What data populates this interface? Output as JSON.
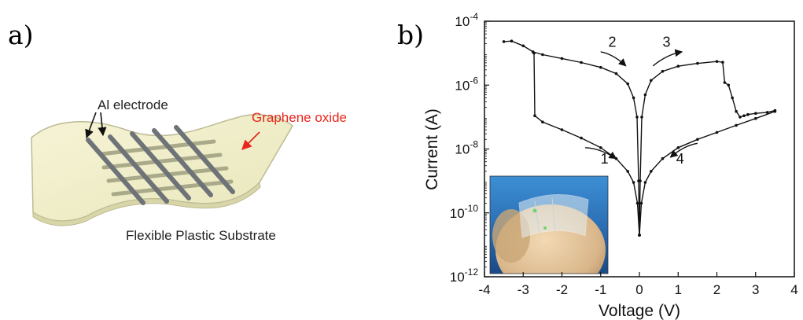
{
  "panel_a": {
    "letter": "a)",
    "electrode_label": "Al electrode",
    "oxide_label": "Graphene oxide",
    "substrate_label": "Flexible Plastic Substrate",
    "colors": {
      "substrate": "#f1efc8",
      "electrode": "#6e7378",
      "oxide_stripe": "#a9aa8a",
      "oxide_label": "#e8261c"
    }
  },
  "panel_b": {
    "letter": "b)",
    "inset": {
      "icon": "photo-of-flexible-device-on-finger-icon"
    }
  },
  "chart_data": {
    "type": "line",
    "title": "",
    "xlabel": "Voltage (V)",
    "ylabel": "Current (A)",
    "xlim": [
      -4,
      4
    ],
    "ylim": [
      1e-12,
      0.0001
    ],
    "yscale": "log",
    "x_ticks": [
      -4,
      -3,
      -2,
      -1,
      0,
      1,
      2,
      3,
      4
    ],
    "y_ticks": [
      {
        "value": 1e-12,
        "base": "10",
        "exp": "-12"
      },
      {
        "value": 1e-10,
        "base": "10",
        "exp": "-10"
      },
      {
        "value": 1e-08,
        "base": "10",
        "exp": "-8"
      },
      {
        "value": 1e-06,
        "base": "10",
        "exp": "-6"
      },
      {
        "value": 0.0001,
        "base": "10",
        "exp": "-4"
      }
    ],
    "grid": false,
    "series": [
      {
        "values": [
          {
            "x": -3.5,
            "y": 2.3e-05
          },
          {
            "x": -3.3,
            "y": 2.4e-05
          },
          {
            "x": -3.0,
            "y": 1.7e-05
          },
          {
            "x": -2.75,
            "y": 1.1e-05
          },
          {
            "x": -2.5,
            "y": 9e-06
          },
          {
            "x": -2.0,
            "y": 6.8e-06
          },
          {
            "x": -1.5,
            "y": 5.1e-06
          },
          {
            "x": -1.0,
            "y": 3.6e-06
          },
          {
            "x": -0.6,
            "y": 2.3e-06
          },
          {
            "x": -0.3,
            "y": 1.1e-06
          },
          {
            "x": -0.15,
            "y": 4e-07
          },
          {
            "x": -0.06,
            "y": 1e-07
          },
          {
            "x": -0.02,
            "y": 1e-09
          },
          {
            "x": 0.0,
            "y": 2e-11
          }
        ]
      },
      {
        "values": [
          {
            "x": 0.0,
            "y": 2e-11
          },
          {
            "x": 0.02,
            "y": 1e-09
          },
          {
            "x": 0.06,
            "y": 1e-07
          },
          {
            "x": 0.15,
            "y": 5e-07
          },
          {
            "x": 0.3,
            "y": 1.4e-06
          },
          {
            "x": 0.6,
            "y": 2.7e-06
          },
          {
            "x": 1.0,
            "y": 3.9e-06
          },
          {
            "x": 1.5,
            "y": 4.8e-06
          },
          {
            "x": 2.0,
            "y": 5.5e-06
          },
          {
            "x": 2.15,
            "y": 5.2e-06
          },
          {
            "x": 2.2,
            "y": 1.2e-06
          },
          {
            "x": 2.3,
            "y": 1e-06
          },
          {
            "x": 2.4,
            "y": 4e-07
          },
          {
            "x": 2.5,
            "y": 1.5e-07
          },
          {
            "x": 2.6,
            "y": 1e-07
          },
          {
            "x": 2.7,
            "y": 1.1e-07
          },
          {
            "x": 2.8,
            "y": 1.2e-07
          },
          {
            "x": 3.0,
            "y": 1.3e-07
          },
          {
            "x": 3.3,
            "y": 1.4e-07
          },
          {
            "x": 3.5,
            "y": 1.6e-07
          }
        ]
      },
      {
        "values": [
          {
            "x": 3.5,
            "y": 1.5e-07
          },
          {
            "x": 3.0,
            "y": 9e-08
          },
          {
            "x": 2.5,
            "y": 5.5e-08
          },
          {
            "x": 2.0,
            "y": 3.3e-08
          },
          {
            "x": 1.5,
            "y": 2e-08
          },
          {
            "x": 1.0,
            "y": 1.1e-08
          },
          {
            "x": 0.6,
            "y": 5e-09
          },
          {
            "x": 0.3,
            "y": 2e-09
          },
          {
            "x": 0.15,
            "y": 9e-10
          },
          {
            "x": 0.05,
            "y": 2e-10
          },
          {
            "x": 0.0,
            "y": 2e-11
          }
        ]
      },
      {
        "values": [
          {
            "x": 0.0,
            "y": 2e-11
          },
          {
            "x": -0.05,
            "y": 2e-10
          },
          {
            "x": -0.15,
            "y": 9e-10
          },
          {
            "x": -0.3,
            "y": 2e-09
          },
          {
            "x": -0.6,
            "y": 5e-09
          },
          {
            "x": -1.0,
            "y": 1.1e-08
          },
          {
            "x": -1.5,
            "y": 2.2e-08
          },
          {
            "x": -2.0,
            "y": 4e-08
          },
          {
            "x": -2.5,
            "y": 7e-08
          },
          {
            "x": -2.7,
            "y": 1.1e-07
          },
          {
            "x": -2.72,
            "y": 1e-05
          }
        ]
      }
    ],
    "annotations": [
      {
        "text": "2",
        "x": -0.7,
        "y": 1.6e-05
      },
      {
        "text": "3",
        "x": 0.7,
        "y": 1.6e-05
      },
      {
        "text": "1",
        "x": -0.9,
        "y": 3.5e-09
      },
      {
        "text": "4",
        "x": 1.05,
        "y": 3.5e-09
      }
    ],
    "arrows": [
      {
        "from": {
          "x": -1.0,
          "y": 1.1e-05
        },
        "to": {
          "x": -0.35,
          "y": 4e-06
        }
      },
      {
        "from": {
          "x": 0.35,
          "y": 4e-06
        },
        "to": {
          "x": 1.1,
          "y": 1.1e-05
        }
      },
      {
        "from": {
          "x": -1.4,
          "y": 1.1e-08
        },
        "to": {
          "x": -0.6,
          "y": 5e-09
        }
      },
      {
        "from": {
          "x": 1.5,
          "y": 1.5e-08
        },
        "to": {
          "x": 0.8,
          "y": 5.5e-09
        }
      }
    ]
  }
}
